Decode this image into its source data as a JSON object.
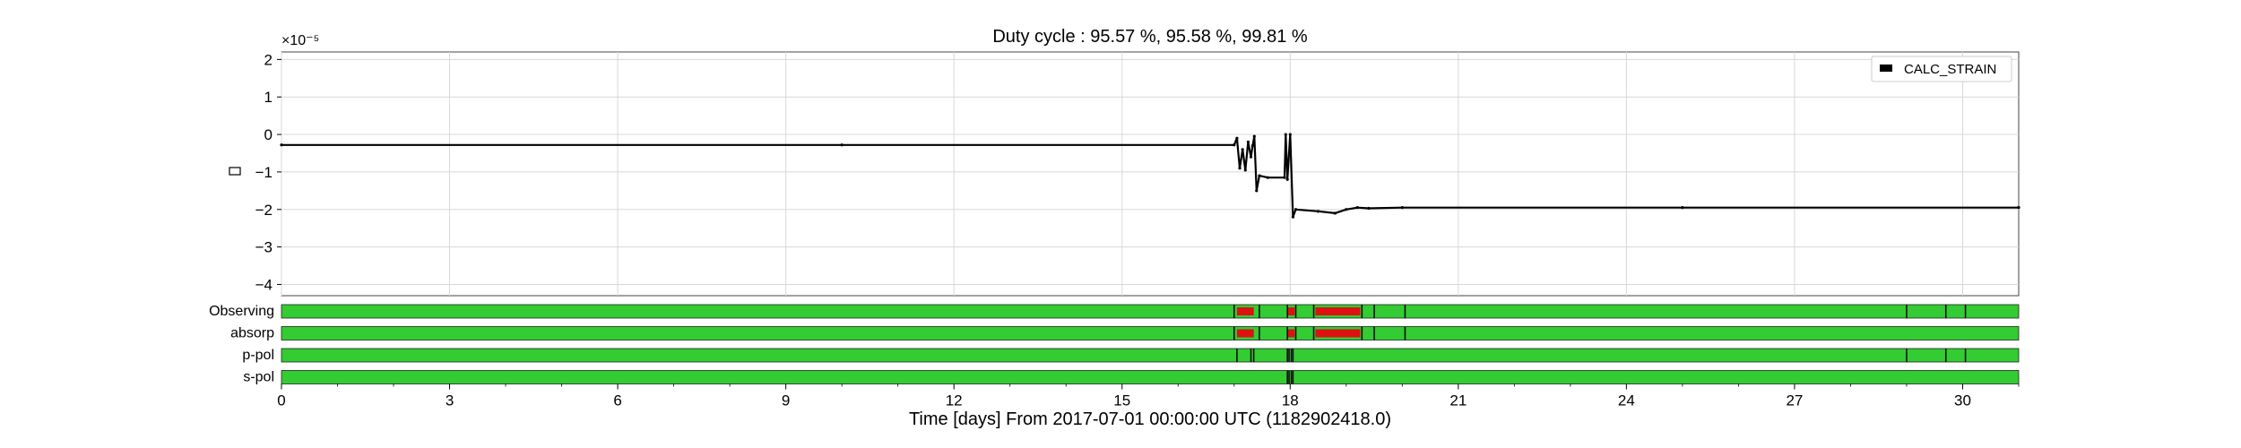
{
  "chart_data": {
    "type": "line",
    "title": "Duty cycle : 95.57 %, 95.58 %, 99.81 %",
    "xlabel": "Time [days] From 2017-07-01 00:00:00 UTC (1182902418.0)",
    "ylabel": "□",
    "y_multiplier": "×10⁻⁵",
    "xlim": [
      0,
      31
    ],
    "ylim": [
      -4.3,
      2.2
    ],
    "x_ticks": [
      0,
      3,
      6,
      9,
      12,
      15,
      18,
      21,
      24,
      27,
      30
    ],
    "y_ticks": [
      2,
      1,
      0,
      -1,
      -2,
      -3,
      -4
    ],
    "y_tick_labels": [
      "2",
      "1",
      "0",
      "−1",
      "−2",
      "−3",
      "−4"
    ],
    "grid": true,
    "legend": {
      "position": "top-right",
      "entries": [
        "CALC_STRAIN"
      ]
    },
    "series": [
      {
        "name": "CALC_STRAIN",
        "color": "#000000",
        "points": [
          [
            0,
            -0.28
          ],
          [
            10,
            -0.28
          ],
          [
            17.0,
            -0.28
          ],
          [
            17.05,
            -0.1
          ],
          [
            17.1,
            -0.9
          ],
          [
            17.15,
            -0.4
          ],
          [
            17.2,
            -0.95
          ],
          [
            17.25,
            -0.2
          ],
          [
            17.3,
            -0.6
          ],
          [
            17.33,
            -0.3
          ],
          [
            17.36,
            -0.05
          ],
          [
            17.4,
            -1.5
          ],
          [
            17.45,
            -1.1
          ],
          [
            17.6,
            -1.15
          ],
          [
            17.9,
            -1.15
          ],
          [
            17.92,
            -0.0
          ],
          [
            17.95,
            -1.2
          ],
          [
            18.0,
            -0.0
          ],
          [
            18.05,
            -2.2
          ],
          [
            18.1,
            -2.0
          ],
          [
            18.5,
            -2.05
          ],
          [
            18.8,
            -2.1
          ],
          [
            19.0,
            -2.0
          ],
          [
            19.2,
            -1.95
          ],
          [
            19.4,
            -1.97
          ],
          [
            20.0,
            -1.95
          ],
          [
            25,
            -1.95
          ],
          [
            31,
            -1.95
          ]
        ]
      }
    ],
    "segments": {
      "label_colors": {
        "on": "#33cc33",
        "off": "#dd1111"
      },
      "rows": [
        {
          "name": "Observing",
          "off": [
            [
              17.05,
              17.35
            ],
            [
              17.95,
              18.08
            ],
            [
              18.45,
              19.25
            ]
          ],
          "ticks": [
            17.0,
            17.45,
            17.95,
            18.1,
            18.42,
            19.28,
            19.5,
            20.05,
            29.0,
            29.7,
            30.05
          ]
        },
        {
          "name": "absorp",
          "off": [
            [
              17.05,
              17.35
            ],
            [
              17.95,
              18.08
            ],
            [
              18.45,
              19.25
            ]
          ],
          "ticks": [
            17.0,
            17.45,
            17.95,
            18.1,
            18.42,
            19.28,
            19.5,
            20.05
          ]
        },
        {
          "name": "p-pol",
          "off": [],
          "ticks": [
            17.05,
            17.3,
            17.35,
            17.95,
            17.98,
            18.02,
            18.05,
            29.0,
            29.7,
            30.05
          ]
        },
        {
          "name": "s-pol",
          "off": [],
          "ticks": [
            17.95,
            17.98,
            18.02,
            18.05
          ]
        }
      ]
    }
  }
}
